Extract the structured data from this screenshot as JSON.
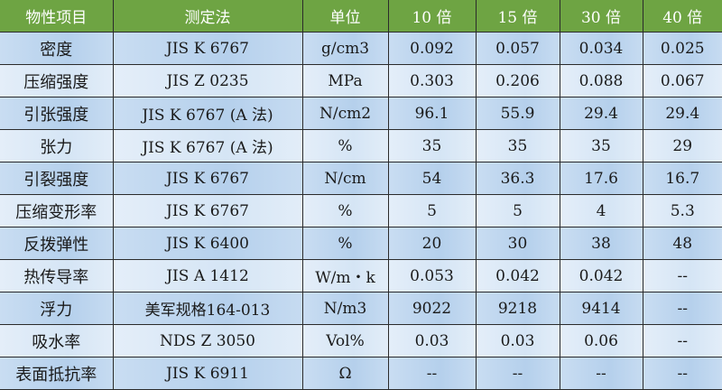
{
  "header_color": "#6ea443",
  "row_colors": [
    "#b5d0ec",
    "#d5e5f5"
  ],
  "headers": [
    "物性项目",
    "测定法",
    "单位",
    "10 倍",
    "15 倍",
    "30 倍",
    "40 倍"
  ],
  "rows": [
    [
      "密度",
      "JIS K 6767",
      "g/cm3",
      "0.092",
      "0.057",
      "0.034",
      "0.025"
    ],
    [
      "压缩强度",
      "JIS Z 0235",
      "MPa",
      "0.303",
      "0.206",
      "0.088",
      "0.067"
    ],
    [
      "引张强度",
      "JIS K 6767 (A 法)",
      "N/cm2",
      "96.1",
      "55.9",
      "29.4",
      "29.4"
    ],
    [
      "张力",
      "JIS K 6767 (A 法)",
      "%",
      "35",
      "35",
      "35",
      "29"
    ],
    [
      "引裂强度",
      "JIS K 6767",
      "N/cm",
      "54",
      "36.3",
      "17.6",
      "16.7"
    ],
    [
      "压缩变形率",
      "JIS K 6767",
      "%",
      "5",
      "5",
      "4",
      "5.3"
    ],
    [
      "反拨弹性",
      "JIS K 6400",
      "%",
      "20",
      "30",
      "38",
      "48"
    ],
    [
      "热传导率",
      "JIS A 1412",
      "W/m・k",
      "0.053",
      "0.042",
      "0.042",
      "--"
    ],
    [
      "浮力",
      "美军规格164-013",
      "N/m3",
      "9022",
      "9218",
      "9414",
      "--"
    ],
    [
      "吸水率",
      "NDS Z 3050",
      "Vol%",
      "0.03",
      "0.03",
      "0.06",
      "--"
    ],
    [
      "表面抵抗率",
      "JIS K 6911",
      "Ω",
      "--",
      "--",
      "--",
      "--"
    ]
  ]
}
